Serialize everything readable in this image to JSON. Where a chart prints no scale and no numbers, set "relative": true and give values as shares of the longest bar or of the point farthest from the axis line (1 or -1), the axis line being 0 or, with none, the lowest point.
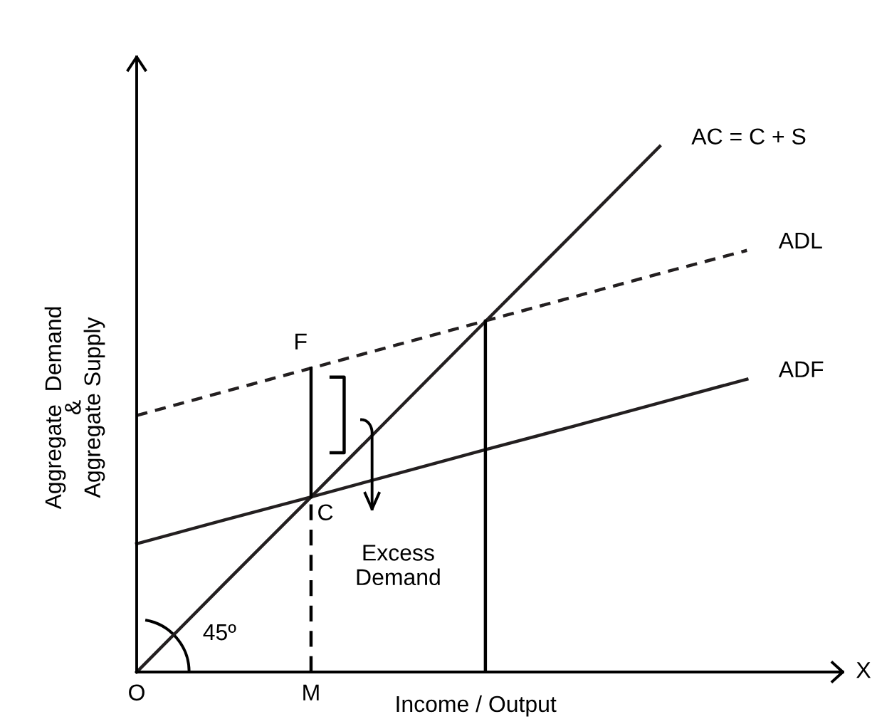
{
  "chart_data": {
    "type": "line",
    "relative": true,
    "categories": [
      "O",
      null,
      "M",
      null,
      null,
      null,
      null,
      null
    ],
    "xlabel": "Income / Output",
    "ylabel": "Aggregate  Demand\n&\nAggregate Supply",
    "series": [
      {
        "name": "AC = C + S",
        "color": "#231f20",
        "line_style": "solid",
        "values": [
          0,
          0.167,
          0.333,
          0.5,
          0.667,
          0.833,
          1,
          null
        ]
      },
      {
        "name": "ADL",
        "color": "#231f20",
        "line_style": "dashed",
        "values": [
          0.488,
          0.533,
          0.578,
          0.623,
          0.668,
          0.713,
          0.758,
          0.802
        ]
      },
      {
        "name": "ADF",
        "color": "#231f20",
        "line_style": "solid",
        "values": [
          0.244,
          0.289,
          0.333,
          0.378,
          0.423,
          0.467,
          0.512,
          0.557
        ]
      }
    ],
    "annotations": [
      "F",
      "C",
      "Excess\nDemand",
      "45º",
      "X"
    ],
    "marker": "none"
  }
}
